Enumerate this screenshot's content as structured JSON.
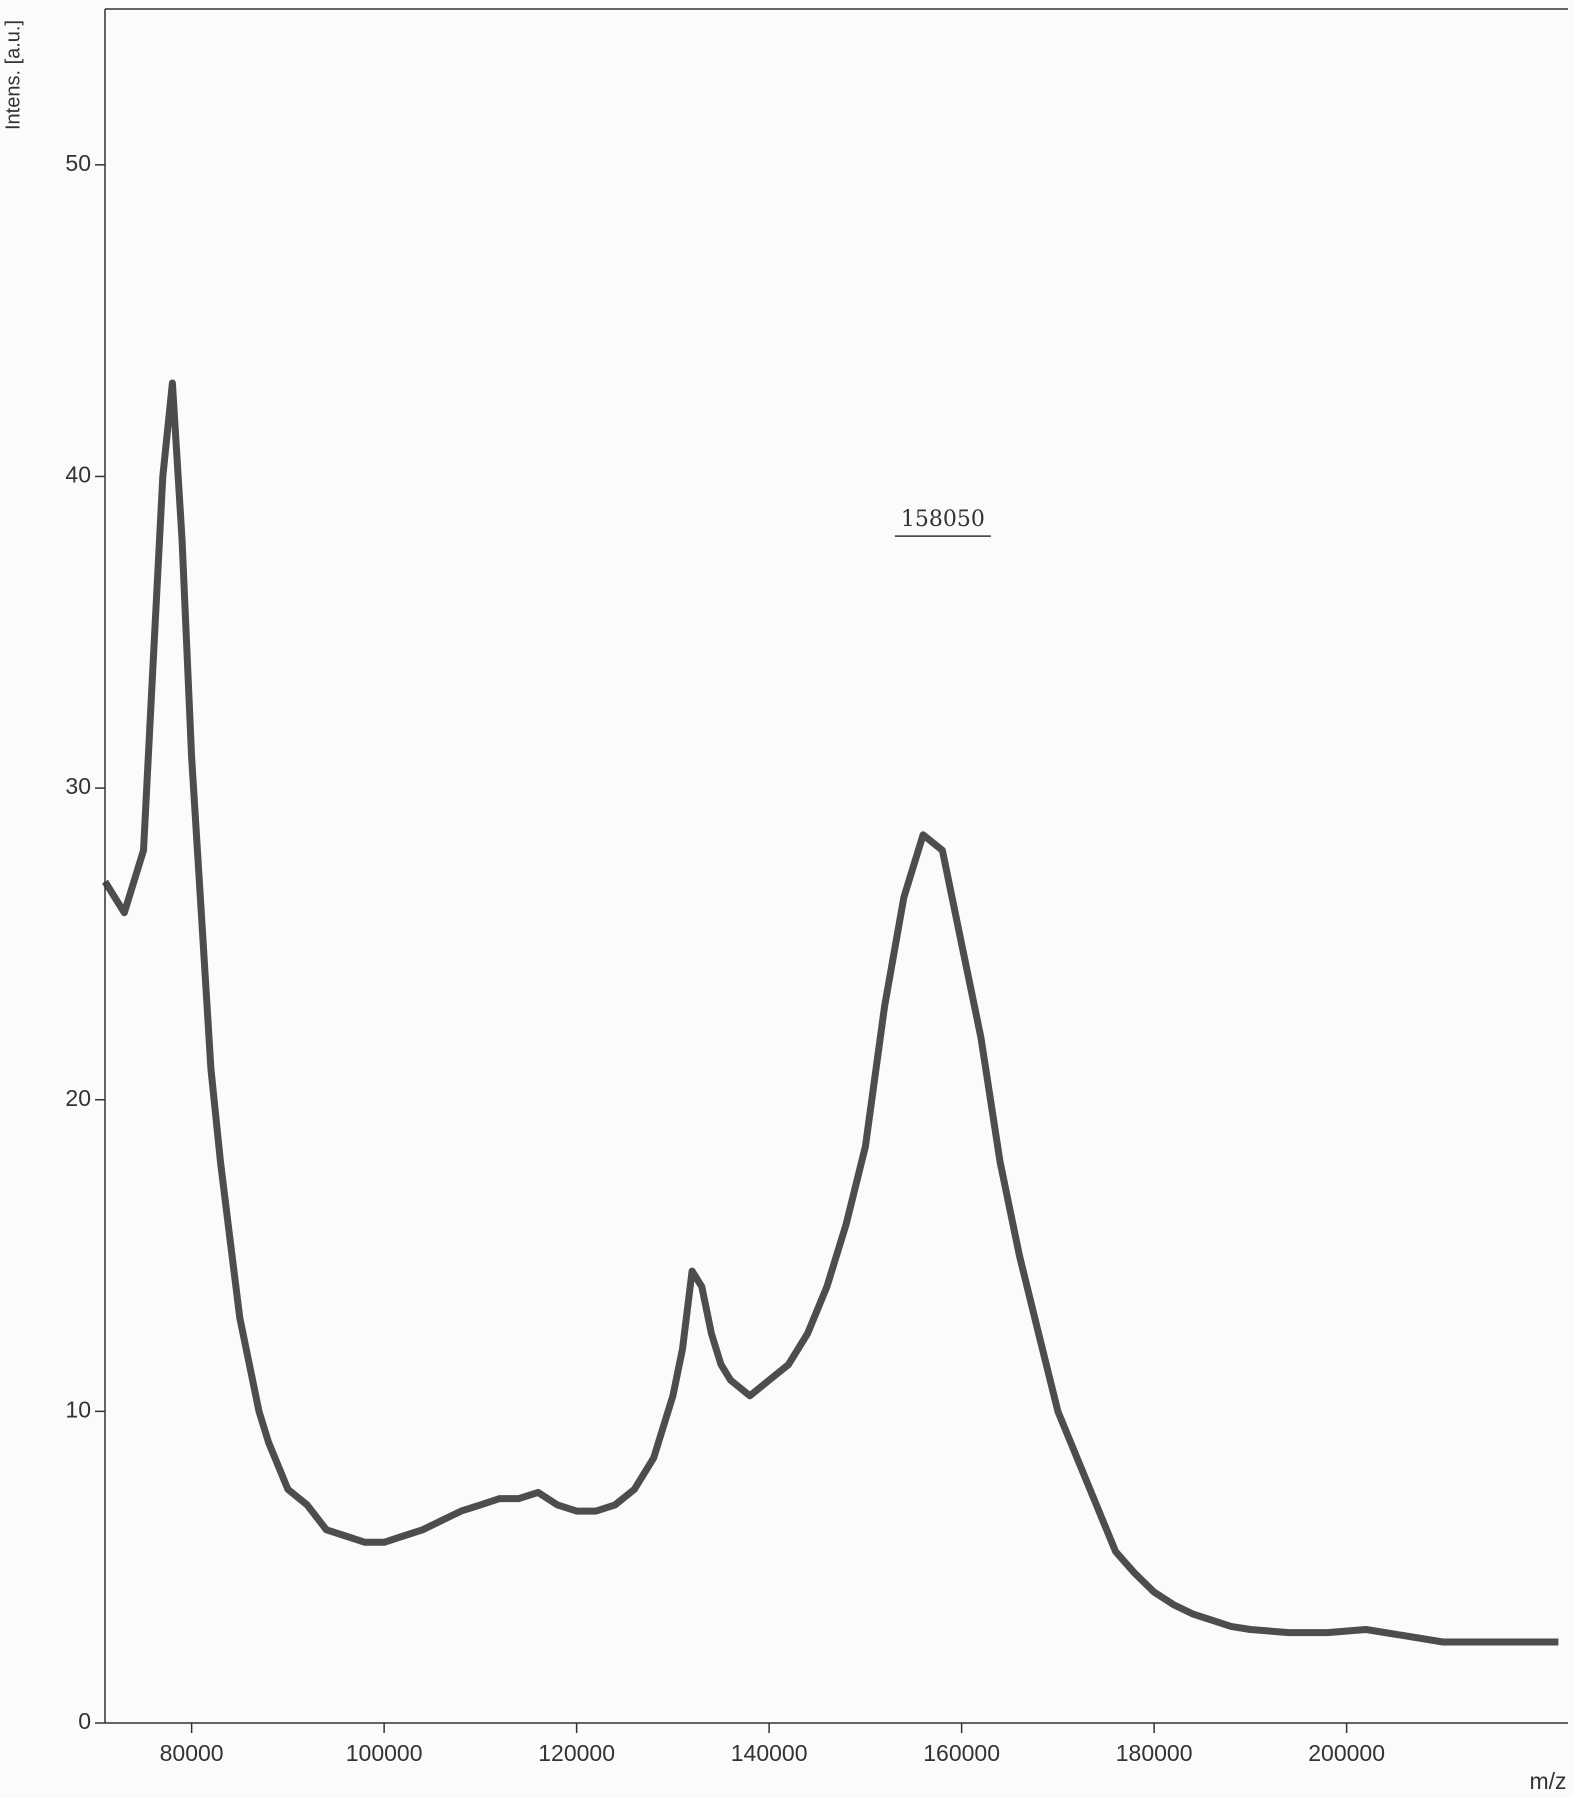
{
  "chart_data": {
    "type": "line",
    "ylabel": "Intens. [a.u.]",
    "xlabel": "m/z",
    "annotations": [
      {
        "text": "158050",
        "x": 158050,
        "y": 38.6
      }
    ],
    "xlim": [
      71000,
      223000
    ],
    "ylim": [
      0,
      55
    ],
    "xticks": [
      80000,
      100000,
      120000,
      140000,
      160000,
      180000,
      200000
    ],
    "yticks": [
      0,
      10,
      20,
      30,
      40,
      50
    ],
    "grid": false,
    "x": [
      71000,
      73000,
      75000,
      76000,
      77000,
      78000,
      79000,
      80000,
      81000,
      82000,
      83000,
      84000,
      85000,
      86000,
      87000,
      88000,
      90000,
      92000,
      94000,
      96000,
      98000,
      100000,
      102000,
      104000,
      106000,
      108000,
      110000,
      112000,
      114000,
      116000,
      118000,
      120000,
      122000,
      124000,
      126000,
      128000,
      130000,
      131000,
      132000,
      133000,
      134000,
      135000,
      136000,
      138000,
      140000,
      142000,
      144000,
      146000,
      148000,
      150000,
      152000,
      154000,
      156000,
      158000,
      160000,
      162000,
      164000,
      166000,
      168000,
      170000,
      172000,
      174000,
      176000,
      178000,
      180000,
      182000,
      184000,
      186000,
      188000,
      190000,
      194000,
      198000,
      202000,
      206000,
      210000,
      214000,
      218000,
      222000
    ],
    "series": [
      {
        "color": "#3a3a3a",
        "values": [
          27,
          26,
          28,
          34,
          40,
          43,
          38,
          31,
          26,
          21,
          18,
          15.5,
          13,
          11.5,
          10,
          9,
          7.5,
          7,
          6.2,
          6,
          5.8,
          5.8,
          6,
          6.2,
          6.5,
          6.8,
          7,
          7.2,
          7.2,
          7.4,
          7,
          6.8,
          6.8,
          7,
          7.5,
          8.5,
          10.5,
          12,
          14.5,
          14,
          12.5,
          11.5,
          11,
          10.5,
          11,
          11.5,
          12.5,
          14,
          16,
          18.5,
          23,
          26.5,
          28.5,
          28,
          25,
          22,
          18,
          15,
          12.5,
          10,
          8.5,
          7,
          5.5,
          4.8,
          4.2,
          3.8,
          3.5,
          3.3,
          3.1,
          3,
          2.9,
          2.9,
          3,
          2.8,
          2.6,
          2.6,
          2.6,
          2.6
        ]
      }
    ]
  }
}
